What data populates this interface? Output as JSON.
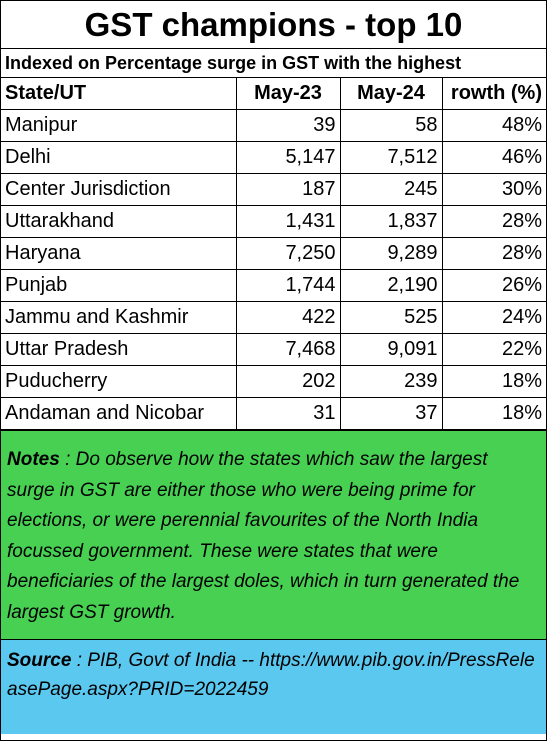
{
  "title": "GST champions - top 10",
  "subtitle": "Indexed on Percentage surge in GST with the highest",
  "table": {
    "headers": [
      "State/UT",
      "May-23",
      "May-24",
      "rowth (%)"
    ],
    "rows": [
      [
        "Manipur",
        "39",
        "58",
        "48%"
      ],
      [
        "Delhi",
        "5,147",
        "7,512",
        "46%"
      ],
      [
        "Center Jurisdiction",
        "187",
        "245",
        "30%"
      ],
      [
        "Uttarakhand",
        "1,431",
        "1,837",
        "28%"
      ],
      [
        "Haryana",
        "7,250",
        "9,289",
        "28%"
      ],
      [
        "Punjab",
        "1,744",
        "2,190",
        "26%"
      ],
      [
        "Jammu and Kashmir",
        "422",
        "525",
        "24%"
      ],
      [
        "Uttar Pradesh",
        "7,468",
        "9,091",
        "22%"
      ],
      [
        "Puducherry",
        "202",
        "239",
        "18%"
      ],
      [
        "Andaman and Nicobar",
        "31",
        "37",
        "18%"
      ]
    ]
  },
  "notes": {
    "label": "Notes",
    "sep": " : ",
    "text": "Do observe how the states which saw the largest surge in GST are either those who were being prime for elections, or were perennial favourites of the North India focussed government. These were states that were beneficiaries of the largest doles, which in turn generated the largest GST growth."
  },
  "source": {
    "label": "Source",
    "sep": " : ",
    "text": "PIB, Govt of India -- https://www.pib.gov.in/PressReleasePage.aspx?PRID=2022459"
  },
  "colors": {
    "notes_bg": "#47d052",
    "source_bg": "#5bc8f0"
  }
}
